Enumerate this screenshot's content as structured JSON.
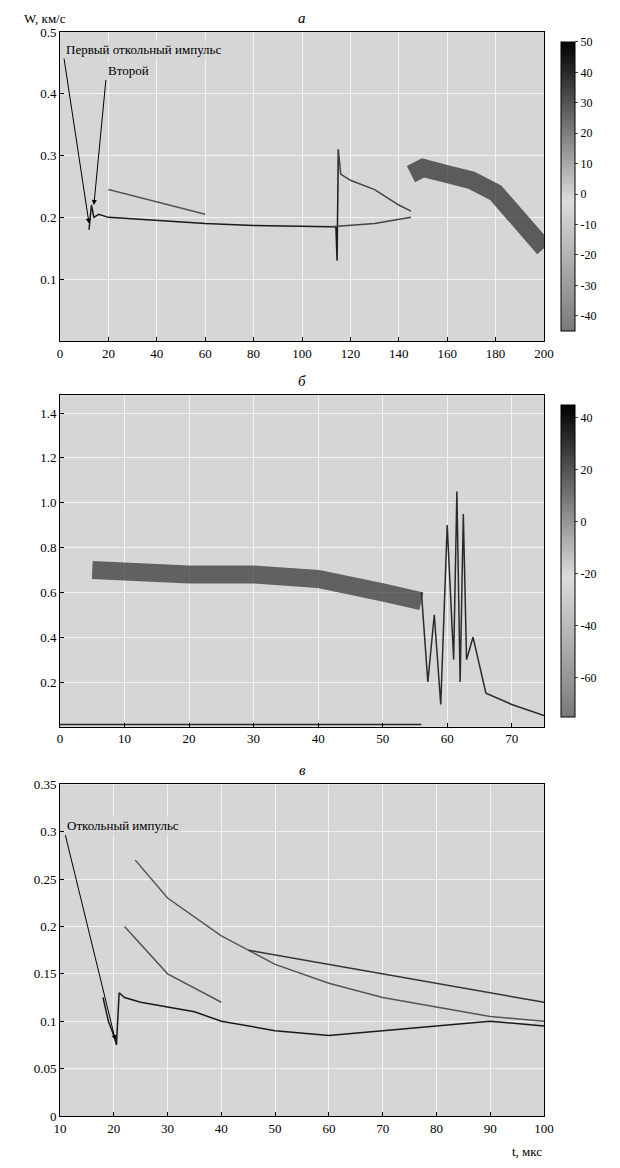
{
  "chart_data": [
    {
      "type": "line",
      "title": "а",
      "ylabel": "W, км/с",
      "grid": true,
      "xlim": [
        0,
        200
      ],
      "xticks": [
        0,
        20,
        40,
        60,
        80,
        100,
        120,
        140,
        160,
        180,
        200
      ],
      "ylim": [
        0,
        0.5
      ],
      "yticks": [
        0.1,
        0.2,
        0.3,
        0.4,
        0.5
      ],
      "colorbar": {
        "range": [
          -45,
          50
        ],
        "ticks": [
          50,
          40,
          30,
          20,
          10,
          0,
          -10,
          -20,
          -30,
          -40
        ]
      },
      "series": [
        {
          "color": "#1a1a1a",
          "line_style": "solid",
          "x": [
            12,
            13,
            14,
            16,
            20,
            40,
            60,
            80,
            100,
            112
          ],
          "values": [
            0.18,
            0.22,
            0.2,
            0.205,
            0.2,
            0.195,
            0.19,
            0.187,
            0.185,
            0.185
          ]
        },
        {
          "color": "#555555",
          "line_style": "solid",
          "x": [
            20,
            40,
            60
          ],
          "values": [
            0.245,
            0.225,
            0.205
          ]
        },
        {
          "color": "#1a1a1a",
          "line_style": "solid",
          "x": [
            112,
            114,
            114.5,
            115
          ],
          "values": [
            0.185,
            0.185,
            0.13,
            0.31
          ]
        },
        {
          "color": "#444444",
          "line_style": "solid",
          "x": [
            115,
            116,
            120,
            130,
            140,
            145
          ],
          "values": [
            0.31,
            0.27,
            0.26,
            0.245,
            0.22,
            0.21
          ]
        },
        {
          "color": "#444444",
          "line_style": "solid",
          "x": [
            112,
            130,
            145
          ],
          "values": [
            0.185,
            0.19,
            0.2
          ]
        },
        {
          "color": "#333333",
          "line_style": "thick",
          "x": [
            145,
            150,
            160,
            170,
            180,
            190,
            200
          ],
          "values": [
            0.27,
            0.28,
            0.27,
            0.26,
            0.24,
            0.2,
            0.15
          ]
        }
      ],
      "annotations": [
        {
          "text": "Первый откольный импульс",
          "x": 12,
          "y": 0.19
        },
        {
          "text": "Второй",
          "x": 14,
          "y": 0.22
        }
      ]
    },
    {
      "type": "line",
      "title": "б",
      "grid": true,
      "xlim": [
        0,
        75
      ],
      "xticks": [
        0,
        10,
        20,
        30,
        40,
        50,
        60,
        70
      ],
      "ylim": [
        0,
        1.48
      ],
      "yticks": [
        0.2,
        0.4,
        0.6,
        0.8,
        {
          "value": 1,
          "label": "1.0"
        },
        1.2,
        1.4
      ],
      "colorbar": {
        "range": [
          -75,
          45
        ],
        "ticks": [
          40,
          20,
          0,
          -20,
          -40,
          -60
        ]
      },
      "series": [
        {
          "color": "#3a3a3a",
          "line_style": "thick",
          "x": [
            5,
            10,
            20,
            30,
            40,
            50,
            56
          ],
          "values": [
            0.7,
            0.69,
            0.68,
            0.68,
            0.66,
            0.6,
            0.56
          ]
        },
        {
          "color": "#2a2a2a",
          "line_style": "solid",
          "x": [
            0,
            56
          ],
          "values": [
            0.01,
            0.01
          ]
        },
        {
          "color": "#2a2a2a",
          "line_style": "solid",
          "x": [
            56,
            57,
            58,
            59,
            60,
            61,
            61.5,
            62,
            62.5,
            63,
            64,
            66,
            70,
            75
          ],
          "values": [
            0.6,
            0.2,
            0.5,
            0.1,
            0.9,
            0.3,
            1.05,
            0.2,
            0.95,
            0.3,
            0.4,
            0.15,
            0.1,
            0.05
          ]
        }
      ],
      "annotations": []
    },
    {
      "type": "line",
      "title": "в",
      "xlabel": "t, мкс",
      "grid": true,
      "xlim": [
        10,
        100
      ],
      "xticks": [
        10,
        20,
        30,
        40,
        50,
        60,
        70,
        80,
        90,
        100
      ],
      "ylim": [
        0,
        0.35
      ],
      "yticks": [
        0,
        0.05,
        0.1,
        0.15,
        0.2,
        0.25,
        0.3,
        0.35
      ],
      "series": [
        {
          "color": "#1a1a1a",
          "line_style": "solid",
          "x": [
            18,
            19,
            20,
            20.5,
            21,
            22,
            25,
            30,
            35,
            40,
            50,
            60,
            70,
            80,
            90,
            100
          ],
          "values": [
            0.125,
            0.1,
            0.085,
            0.075,
            0.13,
            0.125,
            0.12,
            0.115,
            0.11,
            0.1,
            0.09,
            0.085,
            0.09,
            0.095,
            0.1,
            0.095
          ]
        },
        {
          "color": "#555555",
          "line_style": "solid",
          "x": [
            24,
            30,
            40,
            50,
            60,
            70,
            80,
            90,
            100
          ],
          "values": [
            0.27,
            0.23,
            0.19,
            0.16,
            0.14,
            0.125,
            0.115,
            0.105,
            0.1
          ]
        },
        {
          "color": "#333333",
          "line_style": "solid",
          "x": [
            45,
            60,
            80,
            100
          ],
          "values": [
            0.175,
            0.16,
            0.14,
            0.12
          ]
        },
        {
          "color": "#555555",
          "line_style": "solid",
          "x": [
            22,
            30,
            40
          ],
          "values": [
            0.2,
            0.15,
            0.12
          ]
        }
      ],
      "annotations": [
        {
          "text": "Откольный импульс",
          "x": 20.3,
          "y": 0.08
        }
      ]
    }
  ]
}
